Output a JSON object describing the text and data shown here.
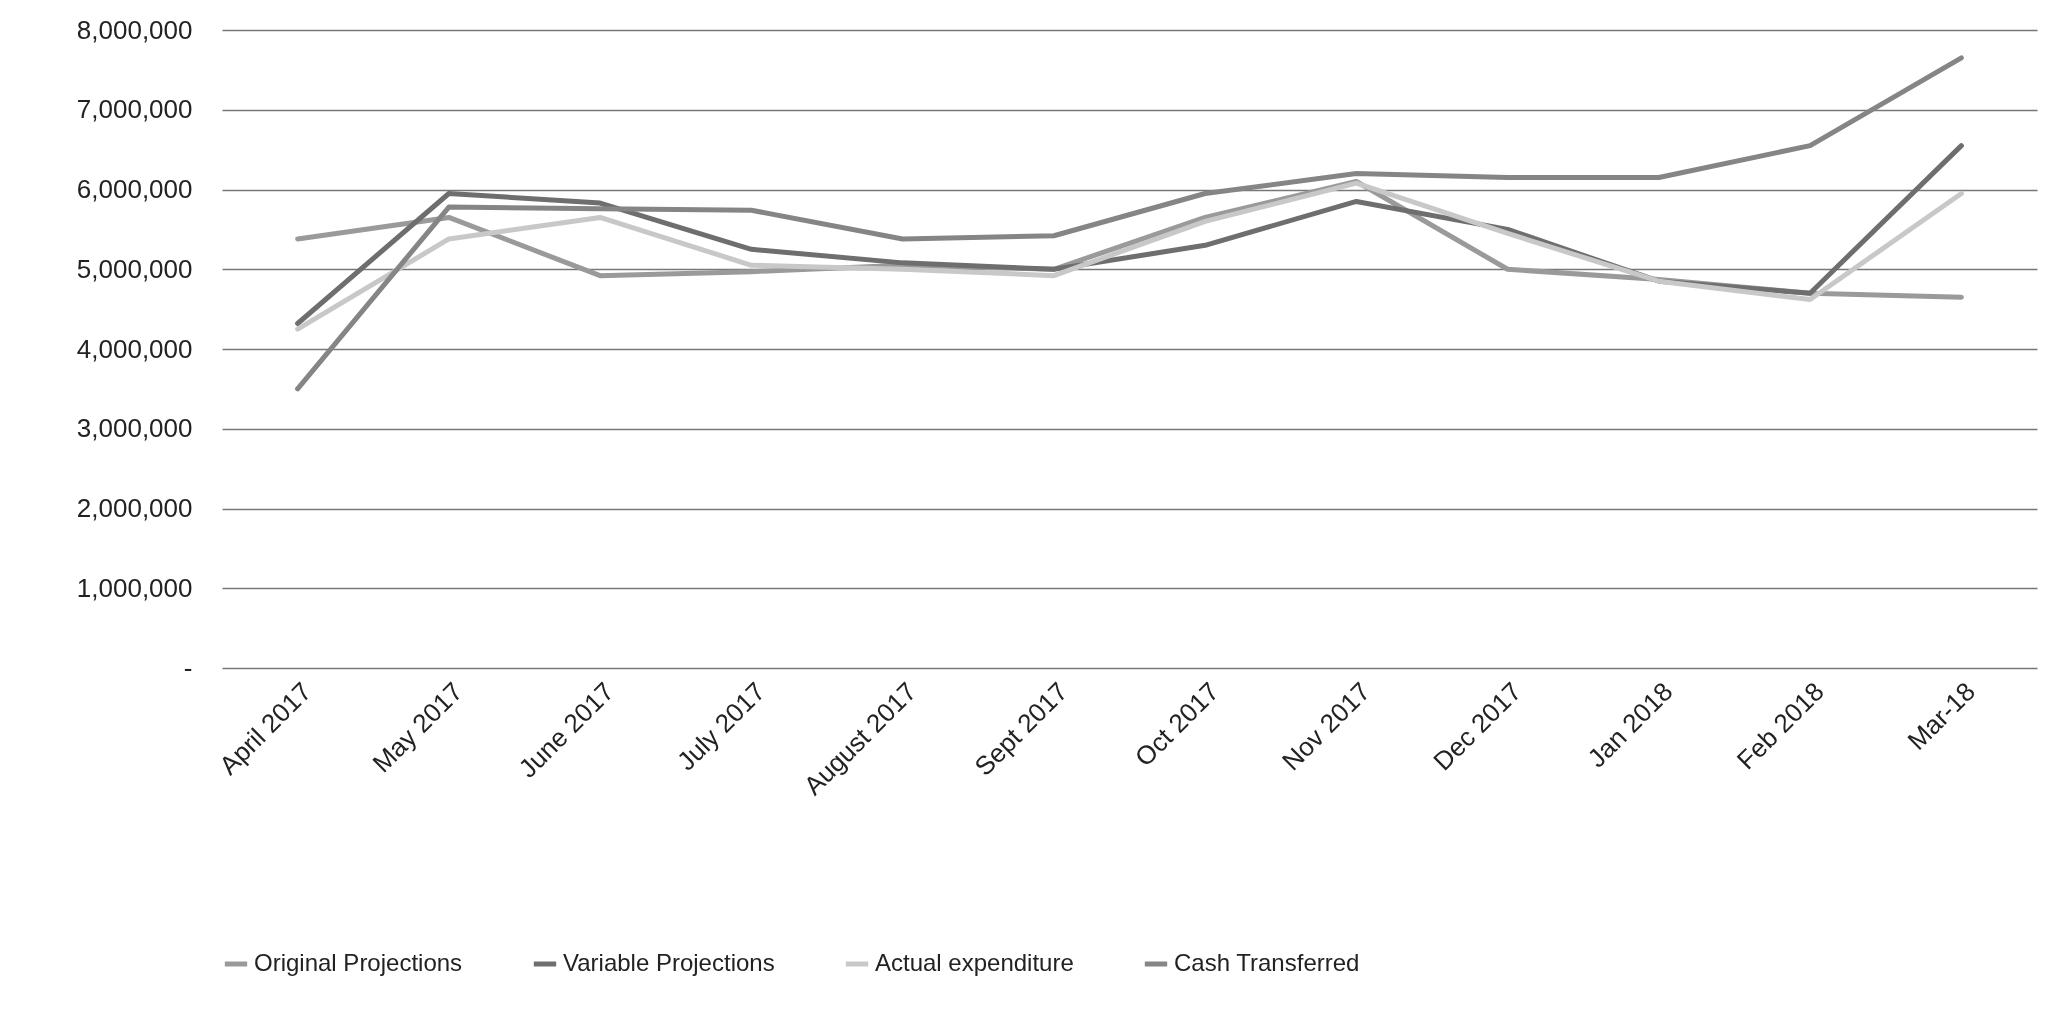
{
  "chart_data": {
    "type": "line",
    "categories": [
      "April 2017",
      "May 2017",
      "June 2017",
      "July 2017",
      "August 2017",
      "Sept 2017",
      "Oct 2017",
      "Nov 2017",
      "Dec 2017",
      "Jan 2018",
      "Feb 2018",
      "Mar-18"
    ],
    "series": [
      {
        "name": "Original Projections",
        "color": "#9a9a9a",
        "values": [
          5380000,
          5650000,
          4920000,
          4970000,
          5050000,
          5000000,
          5650000,
          6100000,
          5000000,
          4870000,
          4700000,
          4650000
        ]
      },
      {
        "name": "Variable Projections",
        "color": "#6e6e6e",
        "values": [
          4320000,
          5950000,
          5830000,
          5250000,
          5080000,
          5000000,
          5300000,
          5850000,
          5500000,
          4850000,
          4700000,
          6550000
        ]
      },
      {
        "name": "Actual expenditure",
        "color": "#c8c8c8",
        "values": [
          4250000,
          5380000,
          5650000,
          5050000,
          5000000,
          4920000,
          5600000,
          6080000,
          5450000,
          4850000,
          4620000,
          5950000
        ]
      },
      {
        "name": "Cash Transferred",
        "color": "#858585",
        "values": [
          3500000,
          5780000,
          5760000,
          5740000,
          5380000,
          5420000,
          5950000,
          6200000,
          6150000,
          6150000,
          6550000,
          7650000
        ]
      }
    ],
    "ylim": [
      0,
      8000000
    ],
    "yticks": [
      {
        "value": 0,
        "label": "-"
      },
      {
        "value": 1000000,
        "label": "1,000,000"
      },
      {
        "value": 2000000,
        "label": "2,000,000"
      },
      {
        "value": 3000000,
        "label": "3,000,000"
      },
      {
        "value": 4000000,
        "label": "4,000,000"
      },
      {
        "value": 5000000,
        "label": "5,000,000"
      },
      {
        "value": 6000000,
        "label": "6,000,000"
      },
      {
        "value": 7000000,
        "label": "7,000,000"
      },
      {
        "value": 8000000,
        "label": "8,000,000"
      }
    ],
    "grid": "y",
    "legend": "bottom",
    "line_style": "solid"
  }
}
